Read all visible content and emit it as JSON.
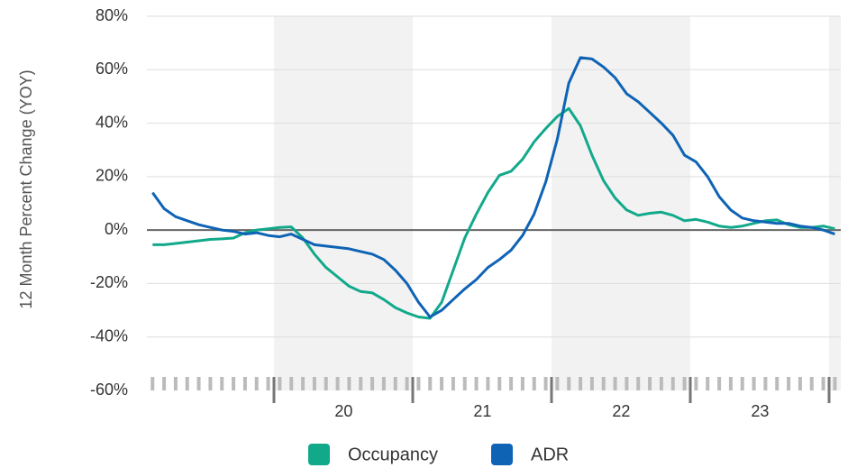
{
  "chart_data": {
    "type": "line",
    "y_label": "12 Month Percent Change (YOY)",
    "categories": [
      null,
      null,
      null,
      null,
      null,
      null,
      null,
      null,
      null,
      null,
      null,
      null,
      null,
      null,
      null,
      null,
      null,
      "20",
      null,
      null,
      null,
      null,
      null,
      null,
      null,
      null,
      null,
      null,
      null,
      "21",
      null,
      null,
      null,
      null,
      null,
      null,
      null,
      null,
      null,
      null,
      null,
      "22",
      null,
      null,
      null,
      null,
      null,
      null,
      null,
      null,
      null,
      null,
      null,
      "23",
      null,
      null,
      null,
      null,
      null,
      null
    ],
    "series": [
      {
        "name": "Occupancy",
        "color": "#12a98b",
        "values": [
          -5.5,
          -5.5,
          -5,
          -4.5,
          -4,
          -3.5,
          -3.3,
          -3,
          -1,
          0,
          0.5,
          1,
          1.2,
          -3,
          -9,
          -14,
          -17.5,
          -21,
          -23,
          -23.5,
          -26,
          -29,
          -31,
          -32.5,
          -33,
          -27,
          -15,
          -3,
          6,
          14,
          20.5,
          22,
          26.5,
          33,
          38,
          42.5,
          45.5,
          39,
          28,
          18.5,
          12,
          7.5,
          5.5,
          6.3,
          6.7,
          5.5,
          3.5,
          4,
          3,
          1.5,
          1,
          1.5,
          2.5,
          3.5,
          3.8,
          2,
          1,
          1,
          1.5,
          0.5
        ]
      },
      {
        "name": "ADR",
        "color": "#0f63b5",
        "values": [
          14,
          8,
          5,
          3.5,
          2,
          1,
          0,
          -0.5,
          -1.5,
          -1,
          -2,
          -2.5,
          -1.5,
          -3.5,
          -5.5,
          -6,
          -6.5,
          -7,
          -8,
          -9,
          -11,
          -15,
          -20,
          -27,
          -32.5,
          -30,
          -26,
          -22,
          -18.5,
          -14,
          -11,
          -7.5,
          -2,
          6,
          18,
          34,
          55,
          64.5,
          64,
          61,
          57,
          51,
          48,
          44,
          40,
          35.5,
          28,
          25.5,
          20,
          12.5,
          7.5,
          4.5,
          3.5,
          3,
          2.5,
          2.5,
          1.5,
          1,
          0,
          -1.5
        ]
      }
    ],
    "ylim": [
      -60,
      80
    ],
    "yticks": [
      {
        "value": -60,
        "label": "-60%"
      },
      {
        "value": -40,
        "label": "-40%"
      },
      {
        "value": -20,
        "label": "-20%"
      },
      {
        "value": 0,
        "label": "0%"
      },
      {
        "value": 20,
        "label": "20%"
      },
      {
        "value": 40,
        "label": "40%"
      },
      {
        "value": 60,
        "label": "60%"
      },
      {
        "value": 80,
        "label": "80%"
      }
    ],
    "grid": true
  }
}
